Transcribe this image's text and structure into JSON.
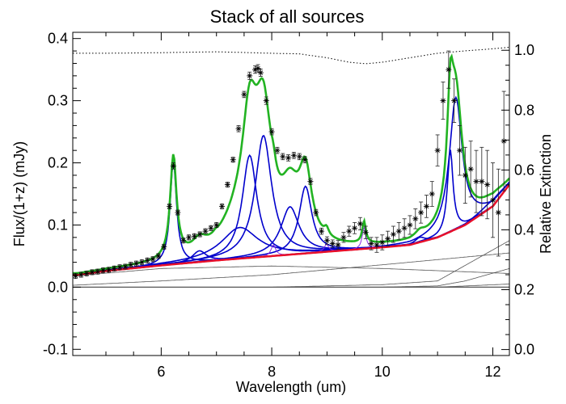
{
  "chart_data": {
    "type": "line",
    "title": "Stack of all sources",
    "xlabel": "Wavelength (um)",
    "ylabel": "Flux/(1+z) (mJy)",
    "y2label": "Relative Extinction",
    "xlim": [
      4.4,
      12.3
    ],
    "ylim": [
      -0.11,
      0.41
    ],
    "y2lim": [
      -0.02,
      1.06
    ],
    "x_ticks": [
      6,
      8,
      10,
      12
    ],
    "y_ticks": [
      -0.1,
      0.0,
      0.1,
      0.2,
      0.3,
      0.4
    ],
    "y_tick_labels": [
      "-0.1",
      "0.0",
      "0.1",
      "0.2",
      "0.3",
      "0.4"
    ],
    "y2_ticks": [
      0.0,
      0.2,
      0.4,
      0.6,
      0.8,
      1.0
    ],
    "y2_tick_labels": [
      "0.0",
      "0.2",
      "0.4",
      "0.6",
      "0.8",
      "1.0"
    ],
    "continuum_red": {
      "x": [
        4.5,
        5,
        6,
        7,
        8,
        9,
        10,
        10.5,
        11,
        11.5,
        12,
        12.3
      ],
      "y": [
        0.02,
        0.026,
        0.035,
        0.043,
        0.05,
        0.057,
        0.064,
        0.068,
        0.08,
        0.1,
        0.13,
        0.165
      ]
    },
    "pah_features": [
      {
        "center": 6.22,
        "amplitude": 0.165,
        "width": 0.07
      },
      {
        "center": 6.69,
        "amplitude": 0.018,
        "width": 0.15
      },
      {
        "center": 7.42,
        "amplitude": 0.05,
        "width": 0.4
      },
      {
        "center": 7.6,
        "amplitude": 0.165,
        "width": 0.16
      },
      {
        "center": 7.85,
        "amplitude": 0.195,
        "width": 0.18
      },
      {
        "center": 8.33,
        "amplitude": 0.077,
        "width": 0.2
      },
      {
        "center": 8.61,
        "amplitude": 0.108,
        "width": 0.14
      },
      {
        "center": 10.68,
        "amplitude": 0.008,
        "width": 0.1
      },
      {
        "center": 11.23,
        "amplitude": 0.132,
        "width": 0.06
      },
      {
        "center": 11.33,
        "amplitude": 0.212,
        "width": 0.14
      },
      {
        "center": 12.0,
        "amplitude": 0.01,
        "width": 0.25
      }
    ],
    "emission_lines": [
      {
        "center": 6.98,
        "amplitude": 0.003,
        "width": 0.04
      },
      {
        "center": 8.03,
        "amplitude": 0.018,
        "width": 0.05
      },
      {
        "center": 8.99,
        "amplitude": 0.012,
        "width": 0.05
      },
      {
        "center": 9.67,
        "amplitude": 0.035,
        "width": 0.04
      }
    ],
    "dust_components": [
      {
        "x": [
          4.4,
          6,
          8,
          10,
          12.3
        ],
        "y": [
          0.018,
          0.03,
          0.034,
          0.03,
          0.022
        ]
      },
      {
        "x": [
          4.4,
          6,
          8,
          10,
          12.3
        ],
        "y": [
          0.003,
          0.01,
          0.02,
          0.036,
          0.055
        ]
      },
      {
        "x": [
          4.4,
          8,
          10,
          11,
          12.3
        ],
        "y": [
          0.0,
          0.0,
          0.004,
          0.01,
          0.075
        ]
      },
      {
        "x": [
          4.4,
          10,
          11,
          11.5,
          12.3
        ],
        "y": [
          0.0,
          0.0,
          0.002,
          0.01,
          0.03
        ]
      },
      {
        "x": [
          4.4,
          11,
          12.3
        ],
        "y": [
          0.0,
          0.0,
          0.005
        ]
      }
    ],
    "zero_line_y": 0.0,
    "extinction": {
      "x": [
        4.4,
        5,
        6,
        7,
        8,
        8.5,
        9,
        9.4,
        9.7,
        10.0,
        10.5,
        11,
        11.5,
        12,
        12.3
      ],
      "y": [
        0.99,
        0.99,
        0.992,
        0.995,
        0.99,
        0.988,
        0.975,
        0.96,
        0.955,
        0.96,
        0.975,
        0.99,
        0.998,
        1.005,
        1.01
      ]
    },
    "data_points": {
      "x": [
        4.45,
        4.55,
        4.65,
        4.75,
        4.85,
        4.95,
        5.05,
        5.15,
        5.25,
        5.35,
        5.45,
        5.55,
        5.65,
        5.75,
        5.85,
        5.95,
        6.05,
        6.15,
        6.22,
        6.3,
        6.4,
        6.5,
        6.6,
        6.7,
        6.8,
        6.9,
        7.0,
        7.1,
        7.2,
        7.3,
        7.4,
        7.5,
        7.6,
        7.7,
        7.75,
        7.8,
        7.9,
        8.0,
        8.1,
        8.2,
        8.3,
        8.4,
        8.5,
        8.6,
        8.7,
        8.8,
        8.9,
        9.0,
        9.1,
        9.2,
        9.3,
        9.4,
        9.5,
        9.6,
        9.7,
        9.8,
        9.9,
        10.0,
        10.1,
        10.2,
        10.3,
        10.4,
        10.5,
        10.6,
        10.7,
        10.8,
        10.9,
        11.0,
        11.1,
        11.2,
        11.3,
        11.4,
        11.5,
        11.6,
        11.7,
        11.8,
        11.9,
        12.0,
        12.1,
        12.2
      ],
      "y": [
        0.018,
        0.02,
        0.022,
        0.024,
        0.025,
        0.027,
        0.028,
        0.03,
        0.032,
        0.033,
        0.036,
        0.038,
        0.04,
        0.043,
        0.045,
        0.05,
        0.065,
        0.13,
        0.195,
        0.12,
        0.075,
        0.08,
        0.082,
        0.085,
        0.09,
        0.095,
        0.1,
        0.13,
        0.165,
        0.205,
        0.255,
        0.31,
        0.34,
        0.35,
        0.352,
        0.345,
        0.3,
        0.25,
        0.22,
        0.21,
        0.208,
        0.212,
        0.21,
        0.205,
        0.17,
        0.12,
        0.09,
        0.075,
        0.07,
        0.068,
        0.08,
        0.09,
        0.095,
        0.102,
        0.088,
        0.07,
        0.068,
        0.072,
        0.078,
        0.085,
        0.09,
        0.095,
        0.1,
        0.11,
        0.12,
        0.13,
        0.15,
        0.22,
        0.3,
        0.35,
        0.3,
        0.22,
        0.18,
        0.19,
        0.17,
        0.17,
        0.165,
        0.14,
        0.12,
        0.235
      ],
      "err": [
        0.004,
        0.004,
        0.004,
        0.004,
        0.004,
        0.004,
        0.004,
        0.004,
        0.004,
        0.004,
        0.004,
        0.004,
        0.004,
        0.004,
        0.004,
        0.004,
        0.004,
        0.004,
        0.005,
        0.004,
        0.004,
        0.004,
        0.004,
        0.004,
        0.004,
        0.004,
        0.004,
        0.004,
        0.004,
        0.004,
        0.005,
        0.005,
        0.006,
        0.006,
        0.006,
        0.006,
        0.006,
        0.005,
        0.005,
        0.005,
        0.005,
        0.005,
        0.005,
        0.005,
        0.005,
        0.005,
        0.005,
        0.006,
        0.006,
        0.007,
        0.008,
        0.008,
        0.009,
        0.01,
        0.01,
        0.01,
        0.012,
        0.012,
        0.012,
        0.013,
        0.014,
        0.015,
        0.015,
        0.016,
        0.017,
        0.018,
        0.02,
        0.025,
        0.03,
        0.03,
        0.035,
        0.04,
        0.045,
        0.045,
        0.05,
        0.055,
        0.055,
        0.06,
        0.07,
        0.08
      ]
    },
    "colors": {
      "data": "#000000",
      "total_fit": "#22b322",
      "pah": "#0000cc",
      "lines": "#8a2be2",
      "continuum": "#e8102a",
      "dust": "#555555",
      "extinction": "#000000"
    }
  }
}
